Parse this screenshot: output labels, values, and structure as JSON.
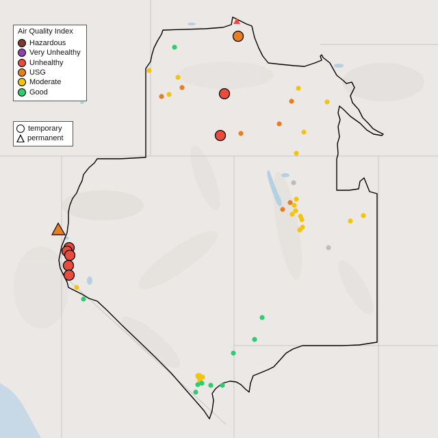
{
  "aqi_legend": {
    "title": "Air Quality Index",
    "categories": [
      {
        "label": "Hazardous",
        "color": "#7e3b32"
      },
      {
        "label": "Very Unhealthy",
        "color": "#8e44ad"
      },
      {
        "label": "Unhealthy",
        "color": "#e74c3c"
      },
      {
        "label": "USG",
        "color": "#e67e22"
      },
      {
        "label": "Moderate",
        "color": "#f1c40f"
      },
      {
        "label": "Good",
        "color": "#2ecc71"
      }
    ]
  },
  "monitor_legend": {
    "temporary": "temporary",
    "permanent": "permanent"
  },
  "colors": {
    "land": "#ebe8e5",
    "ocean": "#c7d9e6",
    "water": "#b5d0e2",
    "boundary": "#000000",
    "state_line": "#c9c6c3",
    "no_data": "#bdbdbd"
  }
}
